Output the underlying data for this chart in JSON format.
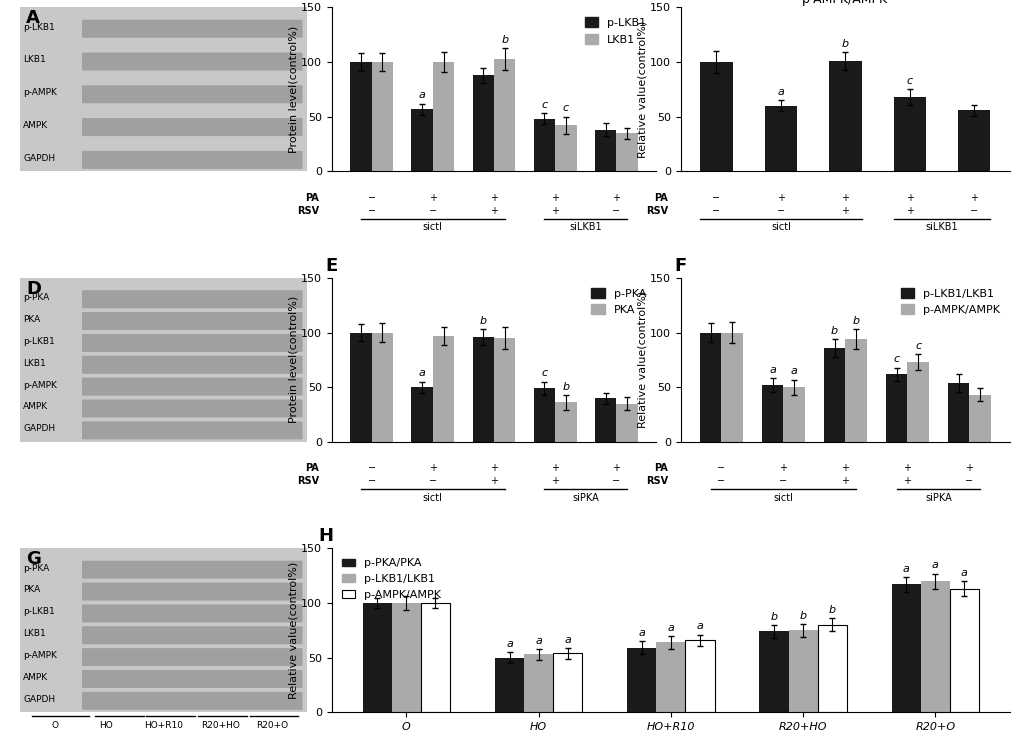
{
  "bg_color": "#ffffff",
  "bar_color_black": "#1a1a1a",
  "bar_color_gray": "#aaaaaa",
  "bar_color_white": "#ffffff",
  "fontsize_panel_label": 13,
  "fontsize_axis_label": 8,
  "fontsize_tick": 8,
  "fontsize_sig": 8,
  "fontsize_legend": 8,
  "fontsize_subtitle": 9,
  "bw": 0.35,
  "bw3": 0.22,
  "panel_B": {
    "ylabel": "Protein level(control%)",
    "ylim": [
      0,
      150
    ],
    "yticks": [
      0,
      50,
      100,
      150
    ],
    "legend": [
      "p-LKB1",
      "LKB1"
    ],
    "pa": [
      "−",
      "+",
      "+",
      "+",
      "+"
    ],
    "rsv": [
      "−",
      "−",
      "+",
      "+",
      "−"
    ],
    "bracket_groups": [
      {
        "label": "sictl",
        "start": 0,
        "end": 2
      },
      {
        "label": "siLKB1",
        "start": 3,
        "end": 4
      }
    ],
    "black_vals": [
      100,
      57,
      88,
      48,
      38
    ],
    "gray_vals": [
      100,
      100,
      103,
      42,
      35
    ],
    "black_errs": [
      8,
      5,
      7,
      5,
      6
    ],
    "gray_errs": [
      8,
      9,
      10,
      8,
      5
    ],
    "sig_b": [
      "",
      "a",
      "",
      "c",
      ""
    ],
    "sig_g": [
      "",
      "",
      "b",
      "c",
      ""
    ]
  },
  "panel_C": {
    "subtitle": "p-AMPK/AMPK",
    "ylabel": "Relative value(control%)",
    "ylim": [
      0,
      150
    ],
    "yticks": [
      0,
      50,
      100,
      150
    ],
    "pa": [
      "−",
      "+",
      "+",
      "+",
      "+"
    ],
    "rsv": [
      "−",
      "−",
      "+",
      "+",
      "−"
    ],
    "bracket_groups": [
      {
        "label": "sictl",
        "start": 0,
        "end": 2
      },
      {
        "label": "siLKB1",
        "start": 3,
        "end": 4
      }
    ],
    "vals": [
      100,
      60,
      101,
      68,
      56
    ],
    "errs": [
      10,
      5,
      8,
      7,
      5
    ],
    "sigs": [
      "",
      "a",
      "b",
      "c",
      ""
    ]
  },
  "panel_E": {
    "ylabel": "Protein level(control%)",
    "ylim": [
      0,
      150
    ],
    "yticks": [
      0,
      50,
      100,
      150
    ],
    "legend": [
      "p-PKA",
      "PKA"
    ],
    "pa": [
      "−",
      "+",
      "+",
      "+",
      "+"
    ],
    "rsv": [
      "−",
      "−",
      "+",
      "+",
      "−"
    ],
    "bracket_groups": [
      {
        "label": "sictl",
        "start": 0,
        "end": 2
      },
      {
        "label": "siPKA",
        "start": 3,
        "end": 4
      }
    ],
    "black_vals": [
      100,
      50,
      96,
      49,
      40
    ],
    "gray_vals": [
      100,
      97,
      95,
      36,
      35
    ],
    "black_errs": [
      8,
      5,
      7,
      6,
      5
    ],
    "gray_errs": [
      9,
      8,
      10,
      7,
      6
    ],
    "sig_b": [
      "",
      "a",
      "b",
      "c",
      ""
    ],
    "sig_g": [
      "",
      "",
      "",
      "b",
      ""
    ]
  },
  "panel_F": {
    "ylabel": "Relative value(control%)",
    "ylim": [
      0,
      150
    ],
    "yticks": [
      0,
      50,
      100,
      150
    ],
    "legend": [
      "p-LKB1/LKB1",
      "p-AMPK/AMPK"
    ],
    "pa": [
      "−",
      "+",
      "+",
      "+",
      "+"
    ],
    "rsv": [
      "−",
      "−",
      "+",
      "+",
      "−"
    ],
    "bracket_groups": [
      {
        "label": "sictl",
        "start": 0,
        "end": 2
      },
      {
        "label": "siPKA",
        "start": 3,
        "end": 4
      }
    ],
    "black_vals": [
      100,
      52,
      86,
      62,
      54
    ],
    "gray_vals": [
      100,
      50,
      94,
      73,
      43
    ],
    "black_errs": [
      9,
      6,
      8,
      6,
      8
    ],
    "gray_errs": [
      10,
      7,
      9,
      7,
      6
    ],
    "sig_b": [
      "",
      "a",
      "b",
      "c",
      ""
    ],
    "sig_g": [
      "",
      "a",
      "b",
      "c",
      ""
    ]
  },
  "panel_H": {
    "ylabel": "Relative value(control%)",
    "ylim": [
      0,
      150
    ],
    "yticks": [
      0,
      50,
      100,
      150
    ],
    "legend": [
      "p-PKA/PKA",
      "p-LKB1/LKB1",
      "p-AMPK/AMPK"
    ],
    "xlabels": [
      "O",
      "HO",
      "HO+R10",
      "R20+HO",
      "R20+O"
    ],
    "black_vals": [
      100,
      50,
      59,
      74,
      117
    ],
    "gray_vals": [
      100,
      53,
      64,
      75,
      120
    ],
    "white_vals": [
      100,
      54,
      66,
      80,
      113
    ],
    "black_errs": [
      5,
      5,
      6,
      6,
      7
    ],
    "gray_errs": [
      6,
      5,
      6,
      6,
      7
    ],
    "white_errs": [
      5,
      5,
      5,
      6,
      7
    ],
    "sig_b": [
      "",
      "a",
      "a",
      "b",
      "a"
    ],
    "sig_g": [
      "",
      "a",
      "a",
      "b",
      "a"
    ],
    "sig_w": [
      "",
      "a",
      "a",
      "b",
      "a"
    ]
  }
}
